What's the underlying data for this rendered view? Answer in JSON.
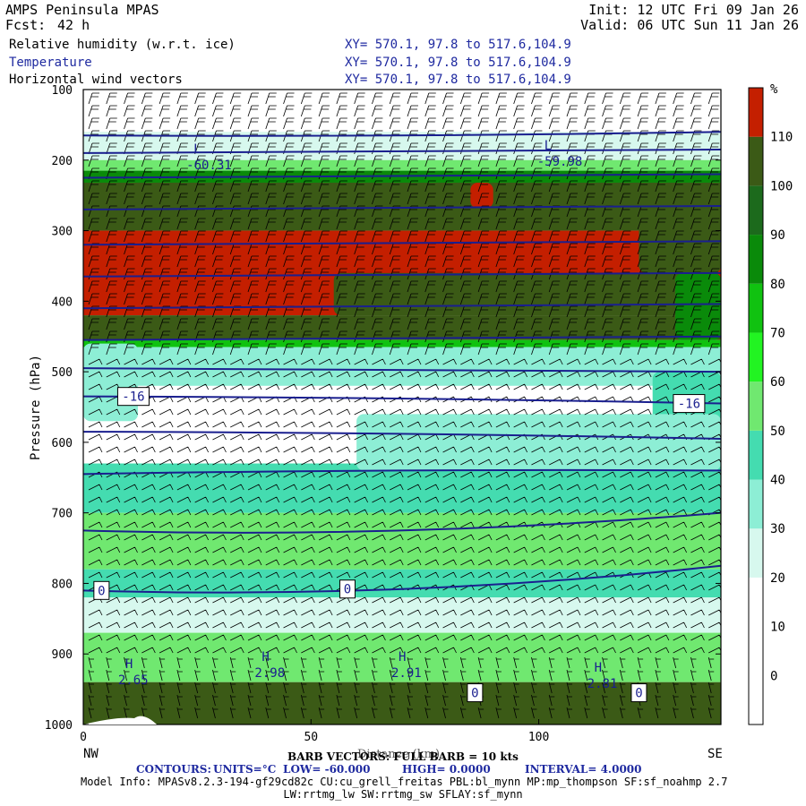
{
  "header": {
    "model": "AMPS Peninsula MPAS",
    "fcst_label": "Fcst:",
    "fcst_value": "42 h",
    "init": "Init: 12 UTC Fri 09 Jan 26",
    "valid": "Valid: 06 UTC Sun 11 Jan 26",
    "fields": [
      {
        "name": "Relative humidity (w.r.t. ice)",
        "xy": "XY= 570.1, 97.8 to 517.6,104.9",
        "color": "#000000"
      },
      {
        "name": "Temperature",
        "xy": "XY= 570.1, 97.8 to 517.6,104.9",
        "color": "#1f2aa0"
      },
      {
        "name": "Horizontal wind vectors",
        "xy": "XY= 570.1, 97.8 to 517.6,104.9",
        "color": "#000000"
      }
    ]
  },
  "chart_data": {
    "type": "heatmap",
    "ylabel": "Pressure (hPa)",
    "xlabel": "Distance (km)",
    "xlim": [
      0,
      140
    ],
    "ylim": [
      1000,
      100
    ],
    "x_ticks": [
      0,
      50,
      100
    ],
    "y_ticks": [
      100,
      200,
      300,
      400,
      500,
      600,
      700,
      800,
      900,
      1000
    ],
    "x_end_labels": {
      "left": "NW",
      "right": "SE"
    },
    "colorbar": {
      "unit": "%",
      "levels": [
        0,
        10,
        20,
        30,
        40,
        50,
        60,
        70,
        80,
        90,
        100,
        110
      ],
      "colors": [
        "#ffffff",
        "#ffffff",
        "#ffffff",
        "#d7f8ee",
        "#8deed5",
        "#44dcb0",
        "#70e870",
        "#22f422",
        "#10c210",
        "#0a8a0a",
        "#1c6a1c",
        "#3b5a16",
        "#c41f00"
      ]
    },
    "rh_bands": [
      {
        "p_top": 100,
        "p_bot": 160,
        "rh": 15
      },
      {
        "p_top": 160,
        "p_bot": 200,
        "rh": 25
      },
      {
        "p_top": 200,
        "p_bot": 215,
        "rh": 50
      },
      {
        "p_top": 215,
        "p_bot": 232,
        "rh": 85
      },
      {
        "p_top": 232,
        "p_bot": 300,
        "rh": 105
      },
      {
        "p_top": 300,
        "p_bot": 420,
        "rh": 115
      },
      {
        "p_top": 420,
        "p_bot": 455,
        "rh": 105
      },
      {
        "p_top": 455,
        "p_bot": 465,
        "rh": 75
      },
      {
        "p_top": 465,
        "p_bot": 520,
        "rh": 35
      },
      {
        "p_top": 520,
        "p_bot": 630,
        "rh": 15
      },
      {
        "p_top": 630,
        "p_bot": 700,
        "rh": 45
      },
      {
        "p_top": 700,
        "p_bot": 780,
        "rh": 55
      },
      {
        "p_top": 780,
        "p_bot": 820,
        "rh": 45
      },
      {
        "p_top": 820,
        "p_bot": 870,
        "rh": 25
      },
      {
        "p_top": 870,
        "p_bot": 940,
        "rh": 55
      },
      {
        "p_top": 940,
        "p_bot": 1000,
        "rh": 105
      }
    ],
    "rh_patches": [
      {
        "x0": 55,
        "x1": 140,
        "p_top": 360,
        "p_bot": 420,
        "rh": 105
      },
      {
        "x0": 85,
        "x1": 90,
        "p_top": 232,
        "p_bot": 268,
        "rh": 115
      },
      {
        "x0": 122,
        "x1": 140,
        "p_top": 232,
        "p_bot": 360,
        "rh": 105
      },
      {
        "x0": 130,
        "x1": 140,
        "p_top": 360,
        "p_bot": 455,
        "rh": 85
      },
      {
        "x0": 0,
        "x1": 12,
        "p_top": 460,
        "p_bot": 570,
        "rh": 35
      },
      {
        "x0": 125,
        "x1": 140,
        "p_top": 500,
        "p_bot": 640,
        "rh": 45
      },
      {
        "x0": 60,
        "x1": 140,
        "p_top": 560,
        "p_bot": 640,
        "rh": 35
      }
    ],
    "temperature_isotherms": [
      {
        "p": [
          165,
          165,
          160
        ],
        "label": ""
      },
      {
        "p": [
          190,
          188,
          185
        ],
        "label": ""
      },
      {
        "p": [
          225,
          222,
          220
        ],
        "label": ""
      },
      {
        "p": [
          270,
          268,
          265
        ],
        "label": ""
      },
      {
        "p": [
          320,
          318,
          315
        ],
        "label": ""
      },
      {
        "p": [
          365,
          362,
          360
        ],
        "label": ""
      },
      {
        "p": [
          410,
          407,
          404
        ],
        "label": ""
      },
      {
        "p": [
          455,
          452,
          450
        ],
        "label": ""
      },
      {
        "p": [
          495,
          497,
          500
        ],
        "label": ""
      },
      {
        "p": [
          535,
          538,
          545
        ],
        "label": "-16"
      },
      {
        "p": [
          585,
          588,
          595
        ],
        "label": ""
      },
      {
        "p": [
          645,
          640,
          640
        ],
        "label": ""
      },
      {
        "p": [
          725,
          725,
          700
        ],
        "label": ""
      },
      {
        "p": [
          810,
          808,
          775
        ],
        "label": "0"
      }
    ],
    "contour_labels": [
      {
        "text": "-16",
        "x": 11,
        "p": 535
      },
      {
        "text": "-16",
        "x": 133,
        "p": 545
      },
      {
        "text": "0",
        "x": 4,
        "p": 810
      },
      {
        "text": "0",
        "x": 58,
        "p": 808
      },
      {
        "text": "0",
        "x": 86,
        "p": 955
      },
      {
        "text": "0",
        "x": 122,
        "p": 955
      }
    ],
    "extrema": [
      {
        "type": "L",
        "value": "-60.31",
        "x": 25,
        "p": 195
      },
      {
        "type": "L",
        "value": "-59.98",
        "x": 102,
        "p": 190
      },
      {
        "type": "H",
        "value": "2.65",
        "x": 10,
        "p": 925
      },
      {
        "type": "H",
        "value": "2.98",
        "x": 40,
        "p": 915
      },
      {
        "type": "H",
        "value": "2.91",
        "x": 70,
        "p": 915
      },
      {
        "type": "H",
        "value": "2.81",
        "x": 113,
        "p": 930
      }
    ]
  },
  "footer": {
    "barb_label": "BARB VECTORS: FULL BARB = 10 kts",
    "contours_label": "CONTOURS:",
    "units": "UNITS=°C",
    "low": "LOW= -60.000",
    "high": "HIGH= 0.0000",
    "interval": "INTERVAL= 4.0000",
    "model_info": "Model Info: MPASv8.2.3-194-gf29cd82c CU:cu_grell_freitas PBL:bl_mynn MP:mp_thompson SF:sf_noahmp 2.7",
    "model_info2": "LW:rrtmg_lw SW:rrtmg_sw SFLAY:sf_mynn"
  }
}
